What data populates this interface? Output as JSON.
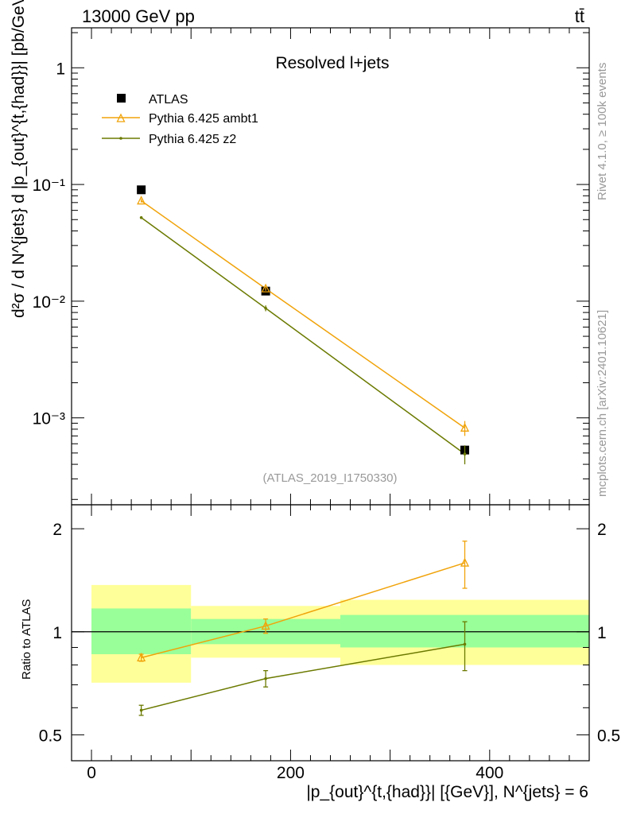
{
  "header": {
    "energy_label": "13000 GeV pp",
    "process_label": "tt̄"
  },
  "side_labels": {
    "rivet": "Rivet 4.1.0, ≥ 100k events",
    "source": "mcplots.cern.ch [arXiv:2401.10621]"
  },
  "chart_data": [
    {
      "type": "line",
      "panel": "main",
      "title": "Resolved l+jets",
      "watermark": "(ATLAS_2019_I1750330)",
      "ylabel": "d²σ / d N^{jets} d |p_{out}^{t,{had}}| [pb/GeV]",
      "yscale": "log",
      "xlim": [
        -20,
        500
      ],
      "ylim": [
        0.00018,
        2.2
      ],
      "yticks": [
        {
          "value": 1,
          "label": "1"
        },
        {
          "value": 0.1,
          "label": "10⁻¹"
        },
        {
          "value": 0.01,
          "label": "10⁻²"
        },
        {
          "value": 0.001,
          "label": "10⁻³"
        }
      ],
      "legend": {
        "position": "top-left",
        "entries": [
          "ATLAS",
          "Pythia 6.425 ambt1",
          "Pythia 6.425 z2"
        ]
      },
      "series": [
        {
          "name": "ATLAS",
          "color": "#000000",
          "marker": "square",
          "x": [
            50,
            175,
            375
          ],
          "y": [
            0.09,
            0.0122,
            0.00053
          ],
          "yerr": [
            0.003,
            0.0006,
            5e-05
          ],
          "xerr": [
            50,
            75,
            125
          ]
        },
        {
          "name": "Pythia 6.425 ambt1",
          "color": "#f0a30a",
          "marker": "triangle",
          "x": [
            50,
            175,
            375
          ],
          "y": [
            0.0725,
            0.0128,
            0.00082
          ],
          "yerr": [
            0.0025,
            0.0005,
            0.00012
          ]
        },
        {
          "name": "Pythia 6.425 z2",
          "color": "#6b7a00",
          "marker": "dot",
          "x": [
            50,
            175,
            375
          ],
          "y": [
            0.052,
            0.0087,
            0.00049
          ],
          "yerr": [
            0.0015,
            0.0005,
            9e-05
          ]
        }
      ]
    },
    {
      "type": "line",
      "panel": "ratio",
      "ylabel": "Ratio to ATLAS",
      "xlabel": "|p_{out}^{t,{had}}| [{GeV}], N^{jets} = 6",
      "yscale": "log",
      "xlim": [
        -20,
        500
      ],
      "ylim": [
        0.42,
        2.35
      ],
      "yticks": [
        {
          "value": 0.5,
          "label": "0.5"
        },
        {
          "value": 1,
          "label": "1"
        },
        {
          "value": 2,
          "label": "2"
        }
      ],
      "xticks": [
        {
          "value": 0,
          "label": "0"
        },
        {
          "value": 200,
          "label": "200"
        },
        {
          "value": 400,
          "label": "400"
        }
      ],
      "bands": [
        {
          "x0": 0,
          "x1": 100,
          "stat_lo": 0.86,
          "stat_hi": 1.17,
          "tot_lo": 0.71,
          "tot_hi": 1.37
        },
        {
          "x0": 100,
          "x1": 250,
          "stat_lo": 0.92,
          "stat_hi": 1.09,
          "tot_lo": 0.84,
          "tot_hi": 1.19
        },
        {
          "x0": 250,
          "x1": 500,
          "stat_lo": 0.9,
          "stat_hi": 1.12,
          "tot_lo": 0.8,
          "tot_hi": 1.24
        }
      ],
      "series": [
        {
          "name": "Pythia 6.425 ambt1",
          "color": "#f0a30a",
          "marker": "triangle",
          "x": [
            50,
            175,
            375
          ],
          "y": [
            0.84,
            1.04,
            1.59
          ],
          "yerr": [
            0.02,
            0.05,
            0.25
          ]
        },
        {
          "name": "Pythia 6.425 z2",
          "color": "#6b7a00",
          "marker": "dot",
          "x": [
            50,
            175,
            375
          ],
          "y": [
            0.59,
            0.73,
            0.92
          ],
          "yerr": [
            0.02,
            0.04,
            0.15
          ]
        }
      ]
    }
  ]
}
